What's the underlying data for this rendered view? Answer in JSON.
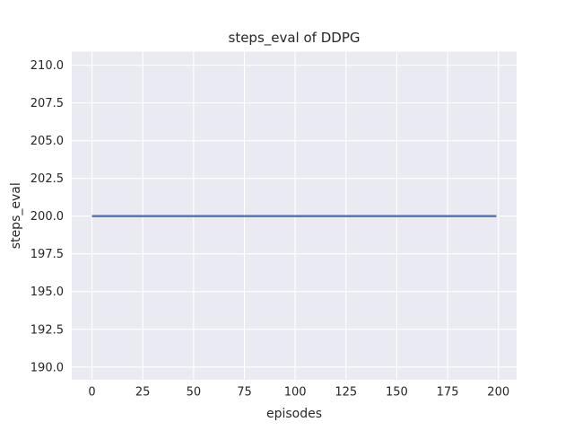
{
  "figure": {
    "background": "#ffffff"
  },
  "chart_data": {
    "type": "line",
    "title": "steps_eval of DDPG",
    "xlabel": "episodes",
    "ylabel": "steps_eval",
    "xlim": [
      -9.95,
      208.95
    ],
    "ylim": [
      189.15,
      210.9
    ],
    "grid": true,
    "legend": "none",
    "xticks": {
      "values": [
        0,
        25,
        50,
        75,
        100,
        125,
        150,
        175,
        200
      ],
      "labels": [
        "0",
        "25",
        "50",
        "75",
        "100",
        "125",
        "150",
        "175",
        "200"
      ]
    },
    "yticks": {
      "values": [
        190.0,
        192.5,
        195.0,
        197.5,
        200.0,
        202.5,
        205.0,
        207.5,
        210.0
      ],
      "labels": [
        "190.0",
        "192.5",
        "195.0",
        "197.5",
        "200.0",
        "202.5",
        "205.0",
        "207.5",
        "210.0"
      ]
    },
    "style": {
      "axes_background": "#eaeaf2",
      "grid_color": "#ffffff",
      "line_color": "#4c72b0",
      "text_color": "#262626",
      "line_width": 2.3
    },
    "series": [
      {
        "name": "steps_eval",
        "x": [
          0,
          199
        ],
        "y": [
          200,
          200
        ]
      }
    ]
  }
}
